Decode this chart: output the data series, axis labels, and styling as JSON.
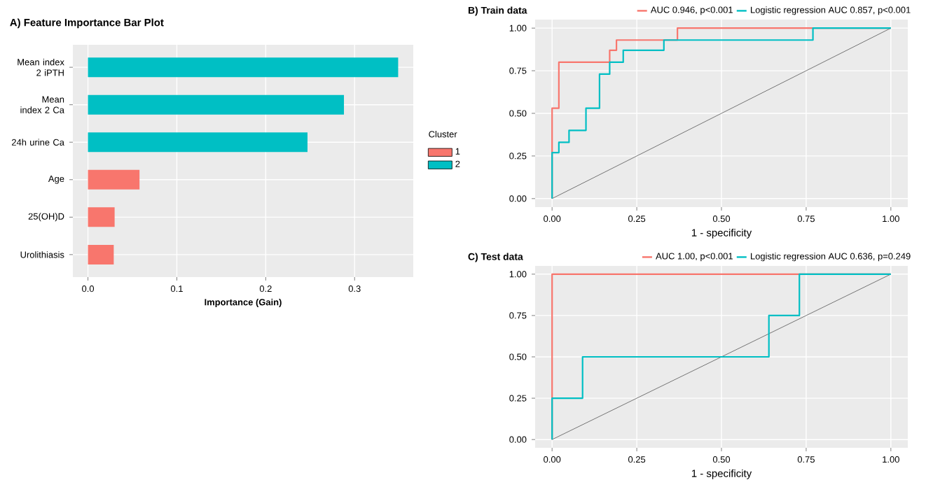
{
  "chart_data": [
    {
      "type": "bar",
      "title": "A) Feature Importance Bar Plot",
      "xlabel": "Importance (Gain)",
      "orientation": "horizontal",
      "categories": [
        "Mean index 2 iPTH",
        "Mean index 2 Ca",
        "24h urine Ca",
        "Age",
        "25(OH)D",
        "Urolithiasis"
      ],
      "series": [
        {
          "name": "1",
          "color": "#f8766d",
          "values": [
            null,
            null,
            null,
            0.058,
            0.03,
            0.029
          ]
        },
        {
          "name": "2",
          "color": "#00bfc4",
          "values": [
            0.349,
            0.288,
            0.247,
            null,
            null,
            null
          ]
        }
      ],
      "legend_title": "Cluster",
      "legend": "right",
      "grid": true,
      "xlim": [
        -0.017,
        0.366
      ],
      "xticks": [
        {
          "value": 0,
          "label": "0.0"
        },
        {
          "value": 0.1,
          "label": "0.1"
        },
        {
          "value": 0.2,
          "label": "0.2"
        },
        {
          "value": 0.3,
          "label": "0.3"
        }
      ]
    },
    {
      "type": "line",
      "title": "B) Train data",
      "xlabel": "1 - specificity",
      "legend": "top",
      "grid": true,
      "xlim": [
        -0.05,
        1.05
      ],
      "ylim": [
        -0.05,
        1.05
      ],
      "xticks": [
        {
          "value": 0,
          "label": "0.00"
        },
        {
          "value": 0.25,
          "label": "0.25"
        },
        {
          "value": 0.5,
          "label": "0.50"
        },
        {
          "value": 0.75,
          "label": "0.75"
        },
        {
          "value": 1,
          "label": "1.00"
        }
      ],
      "yticks": [
        {
          "value": 0,
          "label": "0.00"
        },
        {
          "value": 0.25,
          "label": "0.25"
        },
        {
          "value": 0.5,
          "label": "0.50"
        },
        {
          "value": 0.75,
          "label": "0.75"
        },
        {
          "value": 1,
          "label": "1.00"
        }
      ],
      "series": [
        {
          "color": "#555555",
          "x": [
            0,
            1
          ],
          "values": [
            0,
            1
          ]
        },
        {
          "name": "AUC 0.946, p<0.001",
          "color": "#f8766d",
          "x": [
            0,
            0,
            0.02,
            0.02,
            0.17,
            0.17,
            0.19,
            0.19,
            0.37,
            0.37,
            1
          ],
          "values": [
            0,
            0.53,
            0.53,
            0.8,
            0.8,
            0.87,
            0.87,
            0.93,
            0.93,
            1,
            1
          ]
        },
        {
          "name": "Logistic regression AUC 0.857, p<0.001",
          "color": "#00bfc4",
          "x": [
            0,
            0,
            0.02,
            0.02,
            0.05,
            0.05,
            0.1,
            0.1,
            0.14,
            0.14,
            0.17,
            0.17,
            0.21,
            0.21,
            0.33,
            0.33,
            0.77,
            0.77,
            1
          ],
          "values": [
            0,
            0.27,
            0.27,
            0.33,
            0.33,
            0.4,
            0.4,
            0.53,
            0.53,
            0.73,
            0.73,
            0.8,
            0.8,
            0.87,
            0.87,
            0.93,
            0.93,
            1,
            1
          ]
        }
      ]
    },
    {
      "type": "line",
      "title": "C) Test data",
      "xlabel": "1 - specificity",
      "legend": "top",
      "grid": true,
      "xlim": [
        -0.05,
        1.05
      ],
      "ylim": [
        -0.05,
        1.05
      ],
      "xticks": [
        {
          "value": 0,
          "label": "0.00"
        },
        {
          "value": 0.25,
          "label": "0.25"
        },
        {
          "value": 0.5,
          "label": "0.50"
        },
        {
          "value": 0.75,
          "label": "0.75"
        },
        {
          "value": 1,
          "label": "1.00"
        }
      ],
      "yticks": [
        {
          "value": 0,
          "label": "0.00"
        },
        {
          "value": 0.25,
          "label": "0.25"
        },
        {
          "value": 0.5,
          "label": "0.50"
        },
        {
          "value": 0.75,
          "label": "0.75"
        },
        {
          "value": 1,
          "label": "1.00"
        }
      ],
      "series": [
        {
          "color": "#555555",
          "x": [
            0,
            1
          ],
          "values": [
            0,
            1
          ]
        },
        {
          "name": "AUC 1.00, p<0.001",
          "color": "#f8766d",
          "x": [
            0,
            0,
            1
          ],
          "values": [
            0,
            1,
            1
          ]
        },
        {
          "name": "Logistic regression AUC 0.636, p=0.249",
          "color": "#00bfc4",
          "x": [
            0,
            0,
            0.09,
            0.09,
            0.64,
            0.64,
            0.73,
            0.73,
            1
          ],
          "values": [
            0,
            0.25,
            0.25,
            0.5,
            0.5,
            0.75,
            0.75,
            1,
            1
          ]
        }
      ]
    }
  ]
}
